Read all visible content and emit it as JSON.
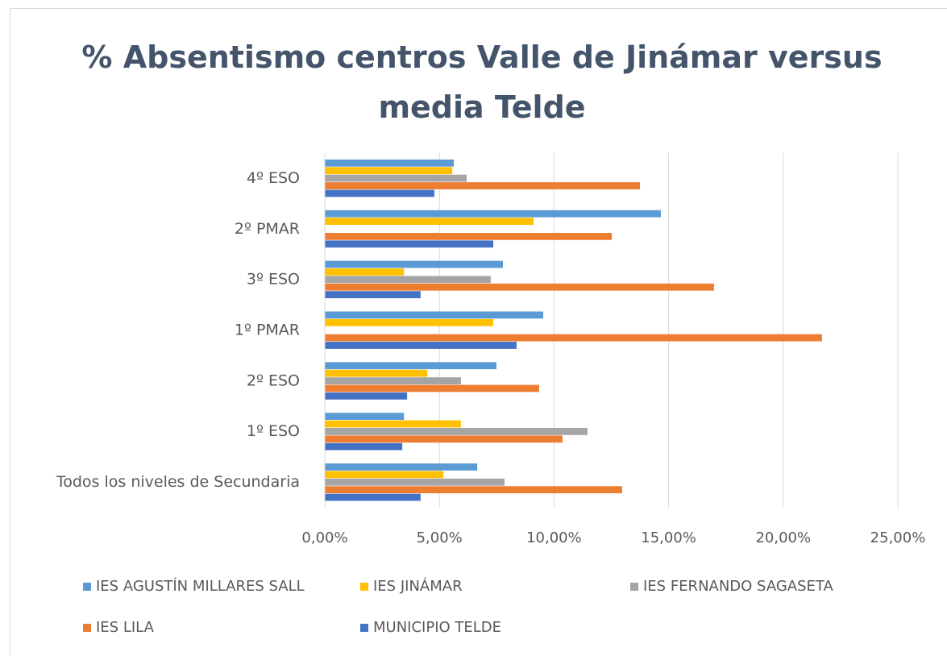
{
  "chart_data": {
    "type": "hbar",
    "title": "% Absentismo centros Valle de Jinámar versus media Telde",
    "categories": [
      "4º ESO",
      "2º PMAR",
      "3º ESO",
      "1º PMAR",
      "2º ESO",
      "1º ESO",
      "Todos los niveles de Secundaria"
    ],
    "series": [
      {
        "name": "IES AGUSTÍN MILLARES SALL",
        "color": "#5b9bd5",
        "values": [
          5.63,
          14.66,
          7.77,
          9.53,
          7.49,
          3.45,
          6.65
        ]
      },
      {
        "name": "IES JINÁMAR",
        "color": "#ffc000",
        "values": [
          5.56,
          9.11,
          3.45,
          7.35,
          4.47,
          5.94,
          5.17
        ]
      },
      {
        "name": "IES FERNANDO SAGASETA",
        "color": "#a5a5a5",
        "values": [
          6.19,
          null,
          7.24,
          null,
          5.94,
          11.46,
          7.84
        ]
      },
      {
        "name": "IES LILA",
        "color": "#ed7d31",
        "values": [
          13.75,
          12.52,
          16.98,
          21.69,
          9.35,
          10.37,
          12.97
        ]
      },
      {
        "name": "MUNICIPIO TELDE",
        "color": "#4472c4",
        "values": [
          4.78,
          7.35,
          4.18,
          8.37,
          3.59,
          3.38,
          4.18
        ]
      }
    ],
    "xlim": [
      0,
      25
    ],
    "xticks": [
      {
        "value": 0,
        "label": "0,00%"
      },
      {
        "value": 5,
        "label": "5,00%"
      },
      {
        "value": 10,
        "label": "10,00%"
      },
      {
        "value": 15,
        "label": "15,00%"
      },
      {
        "value": 20,
        "label": "20,00%"
      },
      {
        "value": 25,
        "label": "25,00%"
      }
    ],
    "grid": true
  }
}
